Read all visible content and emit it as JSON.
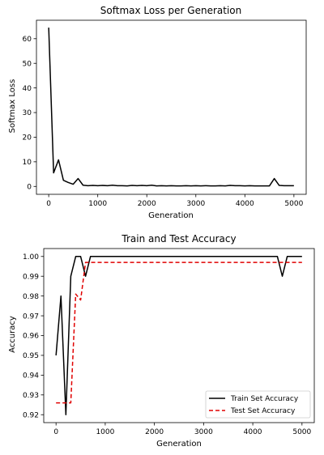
{
  "chart_data": [
    {
      "type": "line",
      "title": "Softmax Loss per Generation",
      "xlabel": "Generation",
      "ylabel": "Softmax Loss",
      "xlim": [
        -250,
        5250
      ],
      "ylim": [
        -3.2,
        67.5
      ],
      "xticks": [
        0,
        1000,
        2000,
        3000,
        4000,
        5000
      ],
      "xtick_labels": [
        "0",
        "1000",
        "2000",
        "3000",
        "4000",
        "5000"
      ],
      "yticks": [
        0,
        10,
        20,
        30,
        40,
        50,
        60
      ],
      "ytick_labels": [
        "0",
        "10",
        "20",
        "30",
        "40",
        "50",
        "60"
      ],
      "grid": false,
      "series": [
        {
          "color": "#000000",
          "dash": "solid",
          "x": [
            0,
            100,
            200,
            300,
            400,
            500,
            600,
            700,
            800,
            900,
            1000,
            1100,
            1200,
            1300,
            1400,
            1500,
            1600,
            1700,
            1800,
            1900,
            2000,
            2100,
            2200,
            2300,
            2400,
            2500,
            2600,
            2700,
            2800,
            2900,
            3000,
            3100,
            3200,
            3300,
            3400,
            3500,
            3600,
            3700,
            3800,
            3900,
            4000,
            4100,
            4200,
            4300,
            4400,
            4500,
            4600,
            4700,
            4800,
            4900,
            5000
          ],
          "y": [
            64.5,
            5.5,
            10.8,
            2.5,
            1.6,
            0.9,
            3.2,
            0.5,
            0.3,
            0.4,
            0.3,
            0.4,
            0.3,
            0.5,
            0.3,
            0.3,
            0.2,
            0.4,
            0.3,
            0.4,
            0.3,
            0.5,
            0.2,
            0.3,
            0.2,
            0.3,
            0.2,
            0.2,
            0.3,
            0.2,
            0.3,
            0.2,
            0.3,
            0.2,
            0.2,
            0.3,
            0.2,
            0.4,
            0.3,
            0.3,
            0.2,
            0.3,
            0.2,
            0.2,
            0.2,
            0.2,
            3.2,
            0.4,
            0.3,
            0.3,
            0.3
          ]
        }
      ]
    },
    {
      "type": "line",
      "title": "Train and Test Accuracy",
      "xlabel": "Generation",
      "ylabel": "Accuracy",
      "xlim": [
        -250,
        5250
      ],
      "ylim": [
        0.916,
        1.004
      ],
      "xticks": [
        0,
        1000,
        2000,
        3000,
        4000,
        5000
      ],
      "xtick_labels": [
        "0",
        "1000",
        "2000",
        "3000",
        "4000",
        "5000"
      ],
      "yticks": [
        0.92,
        0.93,
        0.94,
        0.95,
        0.96,
        0.97,
        0.98,
        0.99,
        1.0
      ],
      "ytick_labels": [
        "0.92",
        "0.93",
        "0.94",
        "0.95",
        "0.96",
        "0.97",
        "0.98",
        "0.99",
        "1.00"
      ],
      "grid": false,
      "legend_position": "lower-right",
      "series": [
        {
          "name": "Train Set Accuracy",
          "color": "#000000",
          "dash": "solid",
          "x": [
            0,
            100,
            200,
            300,
            400,
            500,
            600,
            700,
            4400,
            4500,
            4600,
            4700,
            5000
          ],
          "y": [
            0.95,
            0.98,
            0.92,
            0.99,
            1.0,
            1.0,
            0.99,
            1.0,
            1.0,
            1.0,
            0.99,
            1.0,
            1.0
          ]
        },
        {
          "name": "Test Set Accuracy",
          "color": "#e00000",
          "dash": "dashed",
          "x": [
            0,
            100,
            200,
            300,
            400,
            500,
            600,
            700,
            5000
          ],
          "y": [
            0.926,
            0.926,
            0.926,
            0.926,
            0.981,
            0.978,
            0.997,
            0.997,
            0.997
          ]
        }
      ]
    }
  ]
}
